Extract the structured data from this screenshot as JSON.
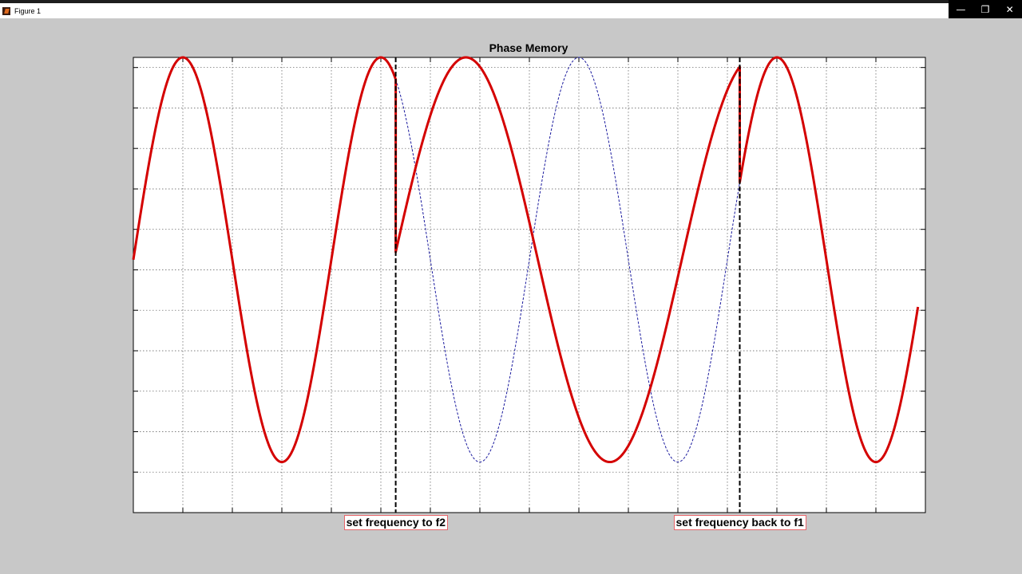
{
  "window": {
    "title": "Figure 1",
    "minimize_glyph": "—",
    "maximize_glyph": "❐",
    "close_glyph": "✕"
  },
  "chart_data": {
    "type": "line",
    "title": "Phase Memory",
    "xlabel": "",
    "ylabel": "",
    "xlim": [
      0,
      16
    ],
    "ylim": [
      -1.25,
      1
    ],
    "grid": true,
    "x_grid_step": 1,
    "y_grid_step": 0.2,
    "tick_labels_shown": false,
    "colors": {
      "output": "#d40000",
      "reference": "#1a1a9e",
      "marker": "#000000"
    },
    "series": [
      {
        "style": "solid-thick",
        "segments": [
          {
            "x_start": 0,
            "x_end": 5.3,
            "frequency": 0.25,
            "phase_deg": 0
          },
          {
            "x_start": 5.3,
            "x_end": 12.25,
            "frequency": 0.172,
            "phase_deg": 34
          },
          {
            "x_start": 12.25,
            "x_end": 15.85,
            "frequency": 0.25,
            "phase_deg": 0
          }
        ]
      },
      {
        "style": "dashed-thin",
        "segments": [
          {
            "x_start": 5.3,
            "x_end": 12.25,
            "frequency": 0.25,
            "phase_deg": 0
          }
        ]
      }
    ],
    "event_markers": [
      {
        "x": 5.3,
        "label": "set frequency to f2"
      },
      {
        "x": 12.25,
        "label": "set frequency back to f1"
      }
    ]
  }
}
